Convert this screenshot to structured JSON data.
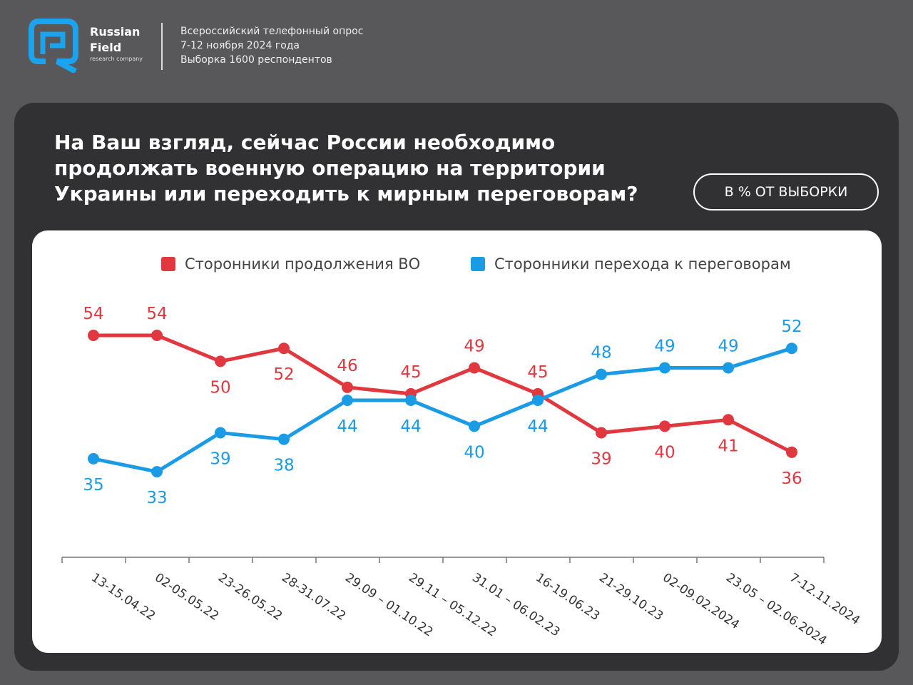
{
  "header": {
    "brand_line1": "Russian",
    "brand_line2": "Field",
    "brand_sub": "research company",
    "meta": [
      "Всероссийский телефонный опрос",
      "7-12 ноября 2024 года",
      "Выборка 1600 респондентов"
    ]
  },
  "question": "На Ваш взгляд, сейчас России необходимо продолжать военную операцию на территории Украины или  переходить к мирным переговорам?",
  "badge": "В % ОТ ВЫБОРКИ",
  "chart_data": {
    "type": "line",
    "categories": [
      "13-15.04.22",
      "02-05.05.22",
      "23-26.05.22",
      "28-31.07.22",
      "29.09 – 01.10.22",
      "29.11 – 05.12.22",
      "31.01 – 06.02.23",
      "16-19.06.23",
      "21-29.10.23",
      "02-09.02.2024",
      "23.05 – 02.06.2024",
      "7-12.11.2024"
    ],
    "series": [
      {
        "name": "Сторонники продолжения ВО",
        "color": "#e0383e",
        "values": [
          54,
          54,
          50,
          52,
          46,
          45,
          49,
          45,
          39,
          40,
          41,
          36
        ]
      },
      {
        "name": "Сторонники перехода к переговорам",
        "color": "#1a9be6",
        "values": [
          35,
          33,
          39,
          38,
          44,
          44,
          40,
          44,
          48,
          49,
          49,
          52
        ]
      }
    ],
    "legend": "top",
    "grid": false
  }
}
